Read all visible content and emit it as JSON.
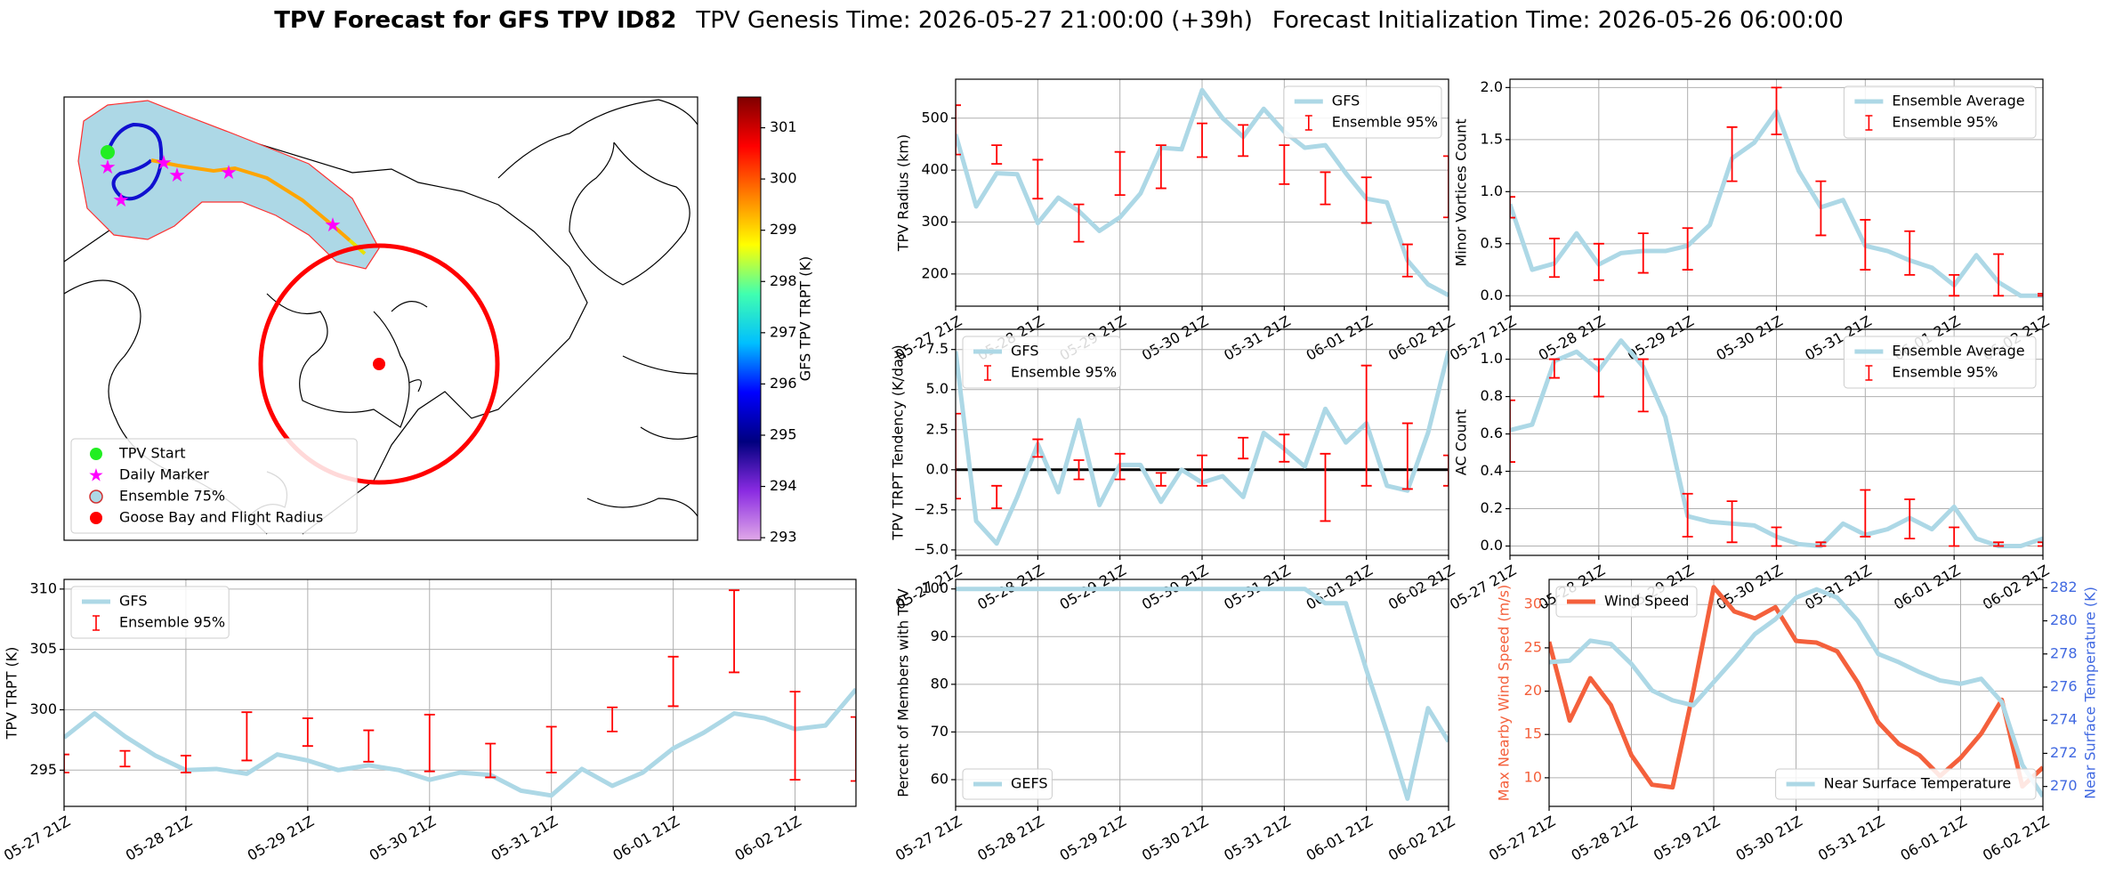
{
  "suptitle": {
    "main": "TPV Forecast for GFS TPV ID82",
    "genesis": "TPV Genesis Time: 2026-05-27 21:00:00 (+39h)",
    "init": "Forecast Initialization Time: 2026-05-26 06:00:00"
  },
  "chart_data": [
    {
      "type": "map",
      "colorbar_label": "GFS TPV TRPT (K)",
      "clim": [
        292.95,
        301.6
      ],
      "cticks": [
        293,
        294,
        295,
        296,
        297,
        298,
        299,
        300,
        301
      ],
      "colormap": [
        "#e0a8e8",
        "#8a2be2",
        "#00007f",
        "#0000ff",
        "#00bfff",
        "#40ffb0",
        "#ffff00",
        "#ff8000",
        "#ff0000",
        "#7f0000"
      ],
      "legend_loc": "lower left",
      "legend": [
        {
          "label": "TPV Start",
          "color": "#22ee22",
          "marker": "circle"
        },
        {
          "label": "Daily Marker",
          "color": "#ff00ff",
          "marker": "star"
        },
        {
          "label": "Ensemble 75%",
          "color": "#add8e6",
          "marker": "ring"
        },
        {
          "label": "Goose Bay and Flight Radius",
          "color": "#ff0000",
          "marker": "circle"
        }
      ]
    },
    {
      "type": "line",
      "ylabel": "TPV Radius (km)",
      "grid": true,
      "legend": "upper right",
      "categories": [
        "05-27 21Z",
        null,
        null,
        null,
        "05-28 21Z",
        null,
        null,
        null,
        "05-29 21Z",
        null,
        null,
        null,
        "05-30 21Z",
        null,
        null,
        null,
        "05-31 21Z",
        null,
        null,
        null,
        "06-01 21Z",
        null,
        null,
        null,
        "06-02 21Z"
      ],
      "ylim": [
        138,
        575
      ],
      "yticks": [
        200,
        300,
        400,
        500
      ],
      "series": [
        {
          "name": "GFS",
          "color": "#add8e6",
          "values": [
            469,
            330,
            394,
            392,
            298,
            347,
            321,
            283,
            309,
            355,
            443,
            440,
            554,
            500,
            464,
            518,
            474,
            443,
            448,
            394,
            345,
            338,
            226,
            180,
            159
          ]
        },
        {
          "name": "Ensemble 95%",
          "type": "errorbar",
          "color": "#ff0000",
          "lower": [
            430,
            null,
            412,
            null,
            345,
            null,
            262,
            null,
            352,
            null,
            365,
            null,
            425,
            null,
            427,
            null,
            373,
            null,
            334,
            null,
            298,
            null,
            195,
            null,
            309
          ],
          "upper": [
            525,
            null,
            448,
            null,
            420,
            null,
            334,
            null,
            435,
            null,
            448,
            null,
            490,
            null,
            487,
            null,
            448,
            null,
            396,
            null,
            386,
            null,
            257,
            null,
            427
          ]
        }
      ]
    },
    {
      "type": "line",
      "ylabel": "Minor Vortices Count",
      "grid": true,
      "legend": "upper right",
      "categories": [
        "05-27 21Z",
        null,
        null,
        null,
        "05-28 21Z",
        null,
        null,
        null,
        "05-29 21Z",
        null,
        null,
        null,
        "05-30 21Z",
        null,
        null,
        null,
        "05-31 21Z",
        null,
        null,
        null,
        "06-01 21Z",
        null,
        null,
        null,
        "06-02 21Z"
      ],
      "ylim": [
        -0.1,
        2.08
      ],
      "yticks": [
        {
          "value": 0,
          "label": "0.0"
        },
        0.5,
        {
          "value": 1,
          "label": "1.0"
        },
        1.5,
        {
          "value": 2,
          "label": "2.0"
        }
      ],
      "series": [
        {
          "name": "Ensemble Average",
          "color": "#add8e6",
          "values": [
            0.88,
            0.25,
            0.31,
            0.6,
            0.3,
            0.41,
            0.43,
            0.43,
            0.48,
            0.68,
            1.32,
            1.47,
            1.77,
            1.2,
            0.85,
            0.92,
            0.48,
            0.43,
            0.34,
            0.27,
            0.1,
            0.39,
            0.13,
            0,
            0
          ]
        },
        {
          "name": "Ensemble 95%",
          "type": "errorbar",
          "color": "#ff0000",
          "lower": [
            0.75,
            null,
            0.18,
            null,
            0.15,
            null,
            0.22,
            null,
            0.25,
            null,
            1.1,
            null,
            1.55,
            null,
            0.58,
            null,
            0.25,
            null,
            0.2,
            null,
            0,
            null,
            0,
            null,
            0
          ],
          "upper": [
            0.95,
            null,
            0.55,
            null,
            0.5,
            null,
            0.6,
            null,
            0.65,
            null,
            1.62,
            null,
            2.0,
            null,
            1.1,
            null,
            0.73,
            null,
            0.62,
            null,
            0.2,
            null,
            0.4,
            null,
            0.02
          ]
        }
      ]
    },
    {
      "type": "line",
      "ylabel": "TPV TRPT Tendency (K/day)",
      "grid": true,
      "legend": "upper left",
      "hline": 0,
      "categories": [
        "05-27 21Z",
        null,
        null,
        null,
        "05-28 21Z",
        null,
        null,
        null,
        "05-29 21Z",
        null,
        null,
        null,
        "05-30 21Z",
        null,
        null,
        null,
        "05-31 21Z",
        null,
        null,
        null,
        "06-01 21Z",
        null,
        null,
        null,
        "06-02 21Z"
      ],
      "ylim": [
        -5.34,
        8.76
      ],
      "yticks": [
        {
          "value": -5,
          "label": "−5.0"
        },
        {
          "value": -2.5,
          "label": "−2.5"
        },
        {
          "value": 0,
          "label": "0.0"
        },
        2.5,
        {
          "value": 5,
          "label": "5.0"
        },
        7.5
      ],
      "series": [
        {
          "name": "GFS",
          "color": "#add8e6",
          "values": [
            7.4,
            -3.2,
            -4.6,
            -1.7,
            1.6,
            -1.4,
            3.1,
            -2.2,
            0.3,
            0.3,
            -2.0,
            0,
            -0.8,
            -0.4,
            -1.7,
            2.3,
            1.3,
            0.2,
            3.8,
            1.7,
            2.9,
            -1.0,
            -1.3,
            2.3,
            7.4
          ]
        },
        {
          "name": "Ensemble 95%",
          "type": "errorbar",
          "color": "#ff0000",
          "lower": [
            -1.8,
            null,
            -2.4,
            null,
            0.8,
            null,
            -0.6,
            null,
            -0.6,
            null,
            -1.0,
            null,
            -1.0,
            null,
            0.7,
            null,
            0.5,
            null,
            -3.2,
            null,
            -1.0,
            null,
            -1.2,
            null,
            -1.0
          ],
          "upper": [
            3.5,
            null,
            -1.0,
            null,
            1.9,
            null,
            0.6,
            null,
            1.0,
            null,
            -0.2,
            null,
            0.9,
            null,
            2.0,
            null,
            2.2,
            null,
            1.0,
            null,
            6.5,
            null,
            2.9,
            null,
            0.9
          ]
        }
      ]
    },
    {
      "type": "line",
      "ylabel": "AC Count",
      "grid": true,
      "legend": "upper right",
      "categories": [
        "05-27 21Z",
        null,
        null,
        null,
        "05-28 21Z",
        null,
        null,
        null,
        "05-29 21Z",
        null,
        null,
        null,
        "05-30 21Z",
        null,
        null,
        null,
        "05-31 21Z",
        null,
        null,
        null,
        "06-01 21Z",
        null,
        null,
        null,
        "06-02 21Z"
      ],
      "ylim": [
        -0.05,
        1.16
      ],
      "yticks": [
        {
          "value": 0,
          "label": "0.0"
        },
        0.2,
        0.4,
        0.6,
        0.8,
        {
          "value": 1,
          "label": "1.0"
        }
      ],
      "series": [
        {
          "name": "Ensemble Average",
          "color": "#add8e6",
          "values": [
            0.62,
            0.65,
            0.99,
            1.04,
            0.94,
            1.1,
            0.96,
            0.69,
            0.16,
            0.13,
            0.12,
            0.11,
            0.05,
            0.01,
            0,
            0.12,
            0.06,
            0.09,
            0.15,
            0.09,
            0.21,
            0.04,
            0,
            0,
            0.04
          ]
        },
        {
          "name": "Ensemble 95%",
          "type": "errorbar",
          "color": "#ff0000",
          "lower": [
            0.45,
            null,
            0.9,
            null,
            0.8,
            null,
            0.72,
            null,
            0.05,
            null,
            0.02,
            null,
            0,
            null,
            0,
            null,
            0.05,
            null,
            0.04,
            null,
            0,
            null,
            0,
            null,
            0
          ],
          "upper": [
            0.78,
            null,
            1.0,
            null,
            1.0,
            null,
            1.0,
            null,
            0.28,
            null,
            0.24,
            null,
            0.1,
            null,
            0.02,
            null,
            0.3,
            null,
            0.25,
            null,
            0.1,
            null,
            0.02,
            null,
            0.02
          ]
        }
      ]
    },
    {
      "type": "line",
      "ylabel": "TPV TRPT (K)",
      "grid": true,
      "legend": "upper left",
      "categories": [
        "05-27 21Z",
        null,
        null,
        null,
        "05-28 21Z",
        null,
        null,
        null,
        "05-29 21Z",
        null,
        null,
        null,
        "05-30 21Z",
        null,
        null,
        null,
        "05-31 21Z",
        null,
        null,
        null,
        "06-01 21Z",
        null,
        null,
        null,
        "06-02 21Z",
        null,
        null
      ],
      "ylim": [
        292,
        310.8
      ],
      "yticks": [
        295,
        300,
        305,
        310
      ],
      "series": [
        {
          "name": "GFS",
          "color": "#add8e6",
          "values": [
            297.7,
            299.7,
            297.8,
            296.2,
            295.0,
            295.1,
            294.7,
            296.3,
            295.8,
            295.0,
            295.4,
            295.0,
            294.2,
            294.8,
            294.6,
            293.3,
            292.9,
            295.1,
            293.7,
            294.8,
            296.8,
            298.1,
            299.7,
            299.3,
            298.4,
            298.7,
            301.7
          ]
        },
        {
          "name": "Ensemble 95%",
          "type": "errorbar",
          "color": "#ff0000",
          "lower": [
            294.8,
            null,
            295.3,
            null,
            294.8,
            null,
            295.8,
            null,
            297.0,
            null,
            295.7,
            null,
            294.9,
            null,
            294.4,
            null,
            294.8,
            null,
            298.2,
            null,
            300.3,
            null,
            303.1,
            null,
            294.2,
            null,
            294.1
          ],
          "upper": [
            296.3,
            null,
            296.6,
            null,
            296.2,
            null,
            299.8,
            null,
            299.3,
            null,
            298.3,
            null,
            299.6,
            null,
            297.2,
            null,
            298.6,
            null,
            300.2,
            null,
            304.4,
            null,
            309.9,
            null,
            301.5,
            null,
            299.4
          ]
        }
      ]
    },
    {
      "type": "line",
      "ylabel": "Percent of Members with TPV",
      "grid": true,
      "legend": "lower left",
      "categories": [
        "05-27 21Z",
        null,
        null,
        null,
        "05-28 21Z",
        null,
        null,
        null,
        "05-29 21Z",
        null,
        null,
        null,
        "05-30 21Z",
        null,
        null,
        null,
        "05-31 21Z",
        null,
        null,
        null,
        "06-01 21Z",
        null,
        null,
        null,
        "06-02 21Z"
      ],
      "ylim": [
        54.4,
        102
      ],
      "yticks": [
        60,
        70,
        80,
        90,
        100
      ],
      "series": [
        {
          "name": "GEFS",
          "color": "#add8e6",
          "values": [
            100,
            100,
            100,
            100,
            100,
            100,
            100,
            100,
            100,
            100,
            100,
            100,
            100,
            100,
            100,
            100,
            100,
            100,
            97,
            97,
            83,
            70,
            56,
            75,
            68
          ]
        }
      ]
    },
    {
      "type": "line",
      "ylabel": "Max Nearby Wind Speed (m/s)",
      "y2label": "Near Surface Temperature (K)",
      "grid": true,
      "legend": "upper left",
      "y2legend": "lower right",
      "categories": [
        "05-27 21Z",
        null,
        null,
        null,
        "05-28 21Z",
        null,
        null,
        null,
        "05-29 21Z",
        null,
        null,
        null,
        "05-30 21Z",
        null,
        null,
        null,
        "05-31 21Z",
        null,
        null,
        null,
        "06-01 21Z",
        null,
        null,
        null,
        "06-02 21Z"
      ],
      "ylim": [
        6.7,
        32.9
      ],
      "yticks": [
        10,
        15,
        20,
        25,
        30
      ],
      "y2lim": [
        268.8,
        282.5
      ],
      "y2ticks": [
        270,
        272,
        274,
        276,
        278,
        280,
        282
      ],
      "series": [
        {
          "name": "Wind Speed",
          "color": "#f4603c",
          "values": [
            25.7,
            16.6,
            21.5,
            18.4,
            12.6,
            9.2,
            8.9,
            19.9,
            32.0,
            29.2,
            28.4,
            29.7,
            25.8,
            25.6,
            24.6,
            21.0,
            16.4,
            13.9,
            12.6,
            10.2,
            12.3,
            15.1,
            19.0,
            9.0,
            11.2
          ]
        },
        {
          "name": "Near Surface Temperature",
          "axis": "y2",
          "color": "#add8e6",
          "axis_color": "#4169e1",
          "values": [
            277.5,
            277.6,
            278.8,
            278.6,
            277.4,
            275.8,
            275.2,
            274.9,
            276.3,
            277.7,
            279.2,
            280.1,
            281.4,
            281.9,
            281.4,
            280.0,
            278.0,
            277.5,
            276.9,
            276.4,
            276.2,
            276.5,
            275.1,
            271.3,
            269.4
          ]
        }
      ]
    }
  ]
}
